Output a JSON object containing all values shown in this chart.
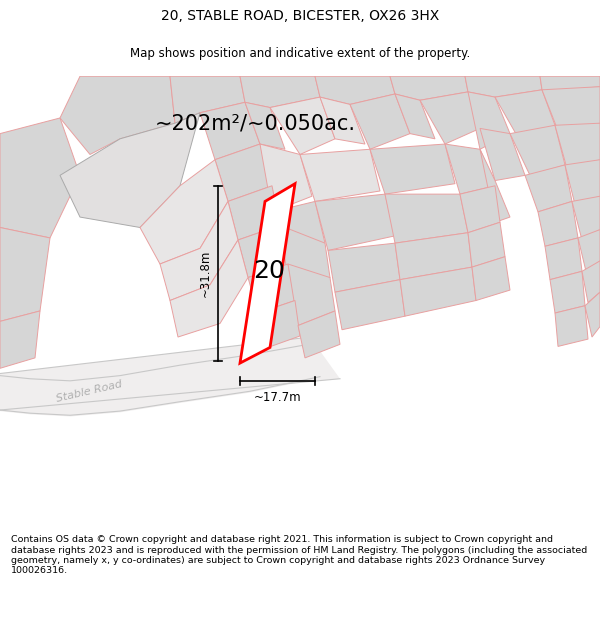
{
  "title": "20, STABLE ROAD, BICESTER, OX26 3HX",
  "subtitle": "Map shows position and indicative extent of the property.",
  "area_label": "~202m²/~0.050ac.",
  "number_label": "20",
  "dim_width": "~17.7m",
  "dim_height": "~31.8m",
  "road_label": "Stable Road",
  "footer": "Contains OS data © Crown copyright and database right 2021. This information is subject to Crown copyright and database rights 2023 and is reproduced with the permission of HM Land Registry. The polygons (including the associated geometry, namely x, y co-ordinates) are subject to Crown copyright and database rights 2023 Ordnance Survey 100026316.",
  "title_fontsize": 10,
  "subtitle_fontsize": 8.5,
  "footer_fontsize": 6.8,
  "map_bg": "#ffffff",
  "building_fill": "#d6d6d6",
  "pink_line": "#e8a0a0",
  "road_fill": "#efefef",
  "plot_border": "#ff0000"
}
